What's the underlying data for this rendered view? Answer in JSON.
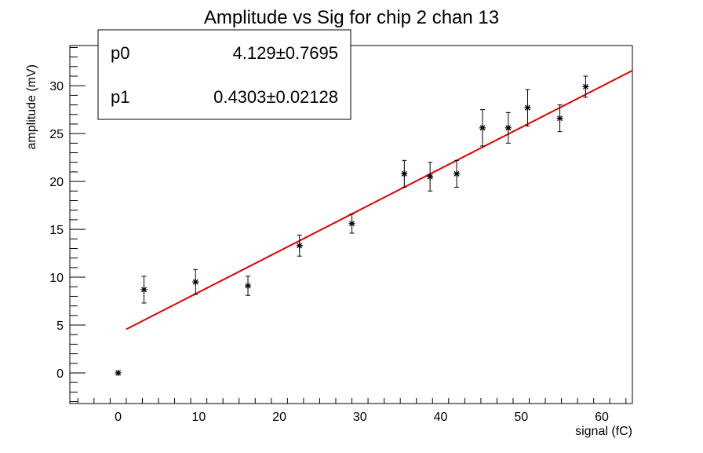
{
  "chart_data": {
    "type": "scatter",
    "title": "Amplitude vs Sig for chip 2 chan 13",
    "xlabel": "signal (fC)",
    "ylabel": "amplitude (mV)",
    "xlim": [
      -6,
      63.8
    ],
    "ylim": [
      -3.2,
      34.2
    ],
    "x_ticks": [
      0,
      10,
      20,
      30,
      40,
      50,
      60
    ],
    "y_ticks": [
      0,
      5,
      10,
      15,
      20,
      25,
      30
    ],
    "grid": false,
    "colors": {
      "points": "#000000",
      "fit": "#e00000"
    },
    "points": [
      {
        "x": 0,
        "y": 0,
        "err": 0
      },
      {
        "x": 3.2,
        "y": 8.7,
        "err": 1.4
      },
      {
        "x": 9.6,
        "y": 9.5,
        "err": 1.3
      },
      {
        "x": 16.1,
        "y": 9.1,
        "err": 1.0
      },
      {
        "x": 22.5,
        "y": 13.3,
        "err": 1.1
      },
      {
        "x": 29.0,
        "y": 15.6,
        "err": 1.0
      },
      {
        "x": 35.5,
        "y": 20.8,
        "err": 1.4
      },
      {
        "x": 38.7,
        "y": 20.5,
        "err": 1.5
      },
      {
        "x": 42.0,
        "y": 20.8,
        "err": 1.4
      },
      {
        "x": 45.2,
        "y": 25.6,
        "err": 1.9
      },
      {
        "x": 48.4,
        "y": 25.6,
        "err": 1.6
      },
      {
        "x": 50.8,
        "y": 27.7,
        "err": 1.9
      },
      {
        "x": 54.8,
        "y": 26.6,
        "err": 1.4
      },
      {
        "x": 58.0,
        "y": 29.9,
        "err": 1.1
      }
    ],
    "fit": {
      "p0": 4.129,
      "p1": 0.4303,
      "x_range": [
        1.0,
        63.8
      ]
    },
    "stats_box": {
      "rows": [
        {
          "label": "p0",
          "value": "4.129",
          "error": "0.7695"
        },
        {
          "label": "p1",
          "value": "0.4303",
          "error": "0.02128"
        }
      ],
      "pm": "±"
    }
  }
}
